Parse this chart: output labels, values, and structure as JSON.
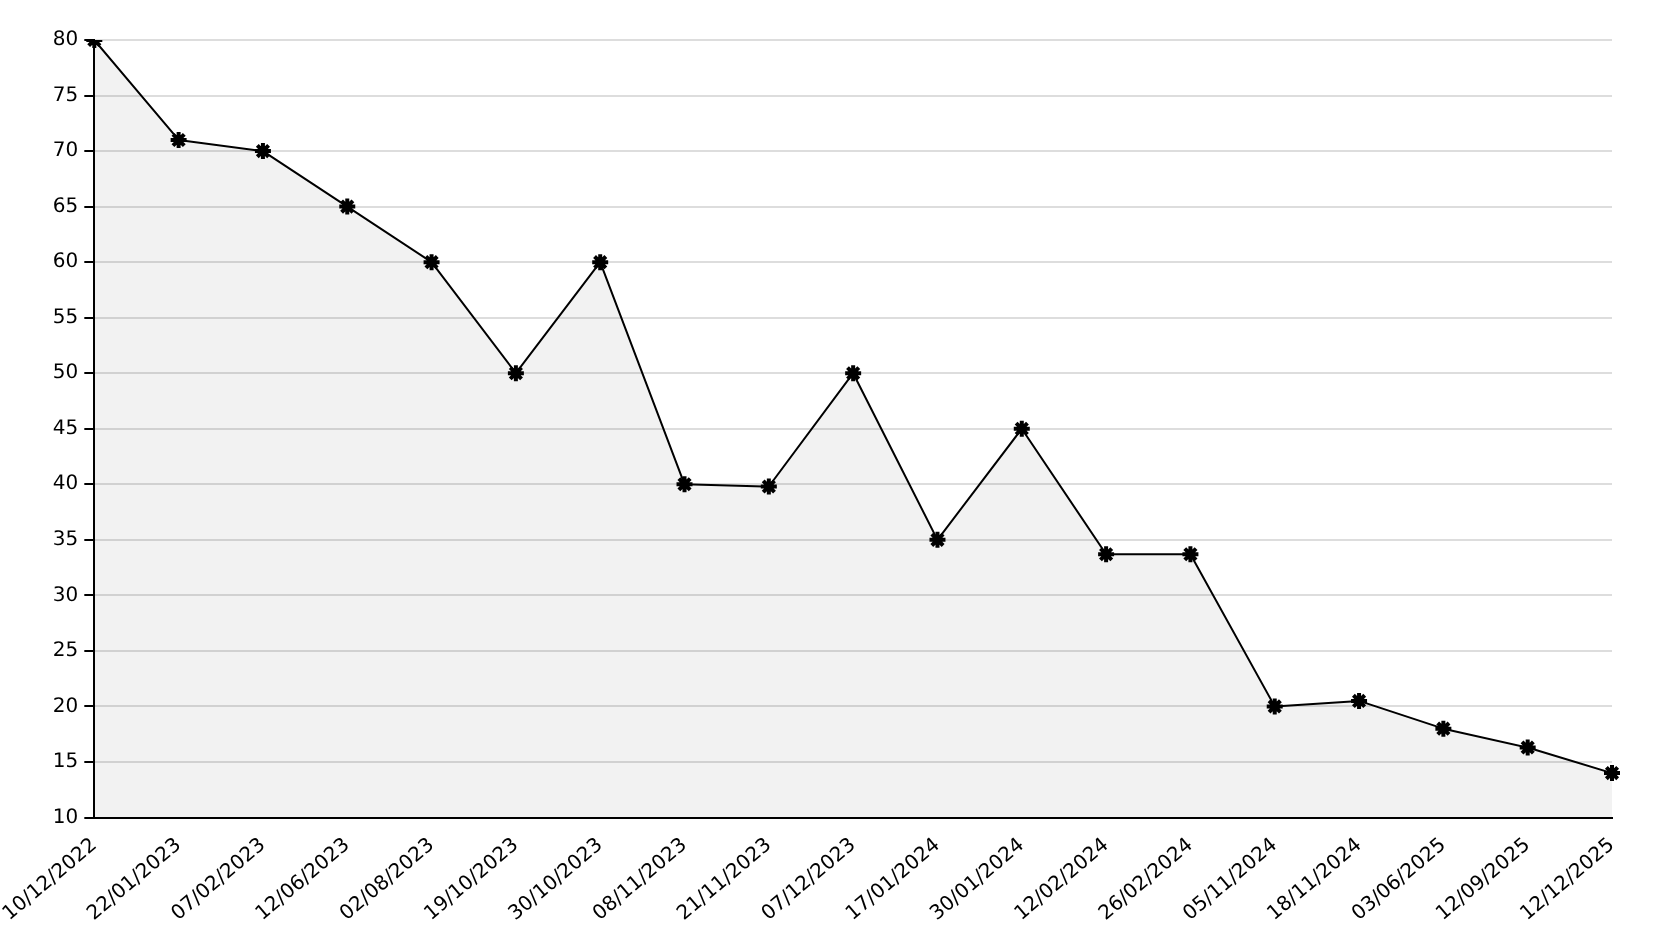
{
  "chart_data": {
    "type": "area",
    "categories": [
      "10/12/2022",
      "22/01/2023",
      "07/02/2023",
      "12/06/2023",
      "02/08/2023",
      "19/10/2023",
      "30/10/2023",
      "08/11/2023",
      "21/11/2023",
      "07/12/2023",
      "17/01/2024",
      "30/01/2024",
      "12/02/2024",
      "26/02/2024",
      "05/11/2024",
      "18/11/2024",
      "03/06/2025",
      "12/09/2025",
      "12/12/2025"
    ],
    "series": [
      {
        "color": "#000000",
        "values": [
          80,
          71,
          70,
          65,
          60,
          50,
          60,
          40,
          39.8,
          50,
          35,
          45,
          33.7,
          33.7,
          20,
          20.5,
          18,
          16.3,
          14
        ]
      }
    ],
    "ylim": [
      10,
      80
    ],
    "yticks": [
      10,
      15,
      20,
      25,
      30,
      35,
      40,
      45,
      50,
      55,
      60,
      65,
      70,
      75,
      80
    ],
    "grid": "y",
    "legend": false,
    "marker": "cross",
    "line_style": "solid"
  }
}
